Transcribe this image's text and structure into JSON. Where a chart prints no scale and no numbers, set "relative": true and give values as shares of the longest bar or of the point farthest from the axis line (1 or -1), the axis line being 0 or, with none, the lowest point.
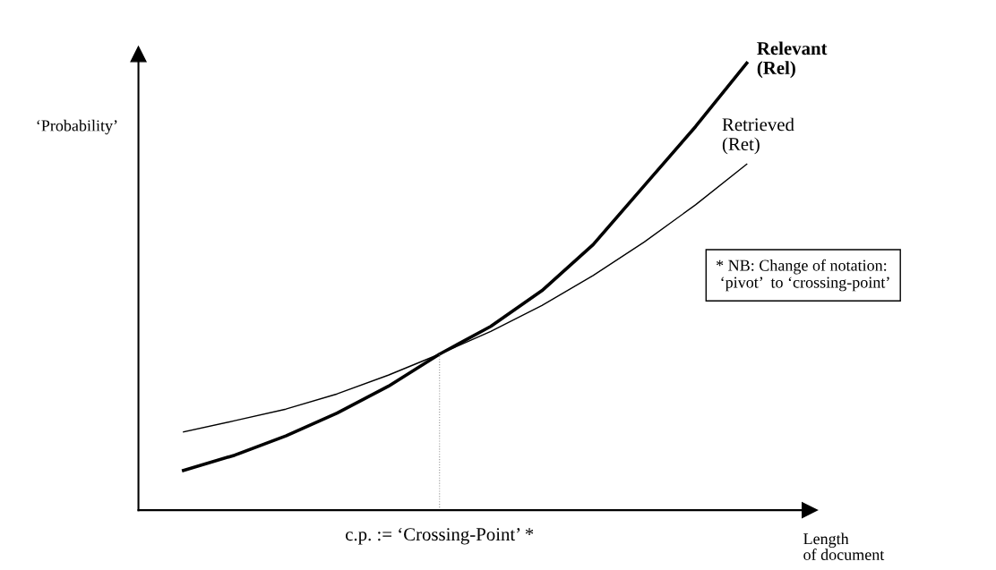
{
  "chart_data": {
    "type": "line",
    "relative": true,
    "ylabel": "‘Probability’",
    "xlabel": "Length\nof document",
    "categories": [
      null,
      null,
      null,
      null,
      null,
      null,
      null,
      null,
      null,
      null,
      null,
      null
    ],
    "series": [
      {
        "name": "Relevant\n(Rel)",
        "color": "#000000",
        "values": [
          0.089,
          0.123,
          0.166,
          0.217,
          0.277,
          0.349,
          0.411,
          0.491,
          0.594,
          0.726,
          0.858,
          1
        ]
      },
      {
        "name": "Retrieved\n(Ret)",
        "color": "#000000",
        "values": [
          0.175,
          0.2,
          0.226,
          0.26,
          0.302,
          0.349,
          0.4,
          0.458,
          0.525,
          0.6,
          0.683,
          0.774
        ]
      }
    ],
    "annotations": [
      "c.p. := ‘Crossing-Point’ *",
      "* NB: Change of notation:\n ‘pivot’  to ‘crossing-point’"
    ],
    "marker": "none",
    "line_style": "solid"
  }
}
